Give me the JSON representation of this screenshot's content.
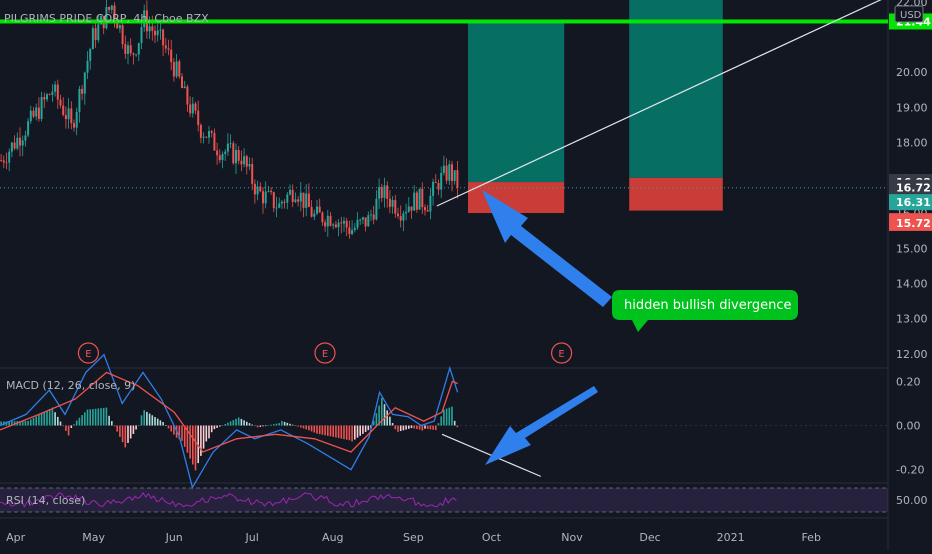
{
  "chart_data": [
    {
      "type": "candlestick",
      "title": "PILGRIMS PRIDE CORP, 4h, Cboe BZX",
      "currency": "USD",
      "ylim": [
        11.6,
        22.05
      ],
      "y_ticks": [
        12,
        13,
        14,
        15,
        16,
        17,
        18,
        19,
        20,
        22
      ],
      "y_tick_labels": [
        "12.00",
        "13.00",
        "14.00",
        "15.00",
        "16.00",
        "17.00",
        "18.00",
        "19.00",
        "20.00",
        "22.00"
      ],
      "x_ticks": [
        "Apr",
        "May",
        "Jun",
        "Jul",
        "Aug",
        "Sep",
        "Oct",
        "Nov",
        "Dec",
        "2021",
        "Feb"
      ],
      "price_labels": [
        {
          "value": 21.44,
          "text": "21.44",
          "color": "#00e600"
        },
        {
          "value": 16.88,
          "text": "16.88",
          "color": "#363a45"
        },
        {
          "value": 16.72,
          "text": "16.72",
          "color": "#363a45"
        },
        {
          "value": 16.31,
          "text": "16.31",
          "color": "#26a69a"
        },
        {
          "value": 15.77,
          "text": "15.77",
          "color": "#ef5350"
        },
        {
          "value": 15.72,
          "text": "15.72",
          "color": "#ef5350"
        }
      ],
      "resistance_line": 21.44,
      "current_price": 16.72,
      "trendline": {
        "from": {
          "date": "2020-09-10",
          "value": 16.2
        },
        "to": {
          "date": "2021-03-01",
          "value": 22.1
        }
      },
      "positions": [
        {
          "start": "2020-09-22",
          "end": "2020-10-29",
          "entry": 16.88,
          "target": 21.44,
          "stop": 16.0
        },
        {
          "start": "2020-11-23",
          "end": "2020-12-29",
          "entry": 17.0,
          "target": 22.05,
          "stop": 16.07
        }
      ],
      "earnings_markers": [
        {
          "date": "2020-04-29",
          "label": "E"
        },
        {
          "date": "2020-07-29",
          "label": "E"
        },
        {
          "date": "2020-10-28",
          "label": "E"
        }
      ],
      "price_path": [
        {
          "date": "2020-03-26",
          "value": 17.5
        },
        {
          "date": "2020-04-06",
          "value": 18.6
        },
        {
          "date": "2020-04-14",
          "value": 19.5
        },
        {
          "date": "2020-04-22",
          "value": 18.4
        },
        {
          "date": "2020-04-30",
          "value": 21.0
        },
        {
          "date": "2020-05-07",
          "value": 21.9
        },
        {
          "date": "2020-05-14",
          "value": 20.4
        },
        {
          "date": "2020-05-20",
          "value": 21.5
        },
        {
          "date": "2020-05-27",
          "value": 20.8
        },
        {
          "date": "2020-06-01",
          "value": 20.0
        },
        {
          "date": "2020-06-04",
          "value": 19.3
        },
        {
          "date": "2020-06-10",
          "value": 18.4
        },
        {
          "date": "2020-06-18",
          "value": 17.8
        },
        {
          "date": "2020-06-26",
          "value": 17.6
        },
        {
          "date": "2020-07-02",
          "value": 16.6
        },
        {
          "date": "2020-07-10",
          "value": 16.2
        },
        {
          "date": "2020-07-17",
          "value": 16.7
        },
        {
          "date": "2020-07-24",
          "value": 15.9
        },
        {
          "date": "2020-07-31",
          "value": 15.9
        },
        {
          "date": "2020-08-07",
          "value": 15.5
        },
        {
          "date": "2020-08-14",
          "value": 15.8
        },
        {
          "date": "2020-08-19",
          "value": 16.6
        },
        {
          "date": "2020-08-26",
          "value": 16.1
        },
        {
          "date": "2020-09-01",
          "value": 16.4
        },
        {
          "date": "2020-09-06",
          "value": 16.3
        },
        {
          "date": "2020-09-10",
          "value": 16.9
        },
        {
          "date": "2020-09-14",
          "value": 17.2
        },
        {
          "date": "2020-09-17",
          "value": 16.8
        },
        {
          "date": "2020-09-18",
          "value": 16.72
        }
      ]
    },
    {
      "type": "histogram",
      "title": "MACD (12, 26, close, 9)",
      "ylim": [
        -0.26,
        0.26
      ],
      "y_ticks": [
        -0.2,
        0.0,
        0.2
      ],
      "y_tick_labels": [
        "-0.20",
        "0.00",
        "0.20"
      ],
      "macd_path": [
        {
          "date": "2020-03-26",
          "value": 0.0
        },
        {
          "date": "2020-04-05",
          "value": 0.05
        },
        {
          "date": "2020-04-14",
          "value": 0.16
        },
        {
          "date": "2020-04-20",
          "value": 0.05
        },
        {
          "date": "2020-04-28",
          "value": 0.24
        },
        {
          "date": "2020-05-05",
          "value": 0.32
        },
        {
          "date": "2020-05-12",
          "value": 0.1
        },
        {
          "date": "2020-05-20",
          "value": 0.24
        },
        {
          "date": "2020-05-27",
          "value": 0.12
        },
        {
          "date": "2020-06-03",
          "value": -0.05
        },
        {
          "date": "2020-06-08",
          "value": -0.28
        },
        {
          "date": "2020-06-16",
          "value": -0.12
        },
        {
          "date": "2020-06-25",
          "value": -0.02
        },
        {
          "date": "2020-07-02",
          "value": -0.06
        },
        {
          "date": "2020-07-12",
          "value": -0.02
        },
        {
          "date": "2020-07-22",
          "value": -0.08
        },
        {
          "date": "2020-08-01",
          "value": -0.15
        },
        {
          "date": "2020-08-08",
          "value": -0.2
        },
        {
          "date": "2020-08-15",
          "value": -0.05
        },
        {
          "date": "2020-08-19",
          "value": 0.15
        },
        {
          "date": "2020-08-24",
          "value": 0.05
        },
        {
          "date": "2020-08-30",
          "value": 0.04
        },
        {
          "date": "2020-09-04",
          "value": 0.0
        },
        {
          "date": "2020-09-09",
          "value": 0.02
        },
        {
          "date": "2020-09-13",
          "value": 0.18
        },
        {
          "date": "2020-09-15",
          "value": 0.26
        },
        {
          "date": "2020-09-18",
          "value": 0.15
        }
      ],
      "signal_path": [
        {
          "date": "2020-03-26",
          "value": -0.02
        },
        {
          "date": "2020-04-10",
          "value": 0.05
        },
        {
          "date": "2020-04-24",
          "value": 0.12
        },
        {
          "date": "2020-05-06",
          "value": 0.24
        },
        {
          "date": "2020-05-18",
          "value": 0.18
        },
        {
          "date": "2020-06-01",
          "value": 0.06
        },
        {
          "date": "2020-06-12",
          "value": -0.12
        },
        {
          "date": "2020-06-25",
          "value": -0.06
        },
        {
          "date": "2020-07-10",
          "value": -0.04
        },
        {
          "date": "2020-07-25",
          "value": -0.06
        },
        {
          "date": "2020-08-08",
          "value": -0.12
        },
        {
          "date": "2020-08-18",
          "value": 0.0
        },
        {
          "date": "2020-08-25",
          "value": 0.08
        },
        {
          "date": "2020-09-05",
          "value": 0.02
        },
        {
          "date": "2020-09-12",
          "value": 0.06
        },
        {
          "date": "2020-09-16",
          "value": 0.2
        },
        {
          "date": "2020-09-18",
          "value": 0.19
        }
      ],
      "divergence_line": {
        "from": {
          "date": "2020-09-12",
          "value": -0.04
        },
        "to": {
          "date": "2020-10-20",
          "value": -0.23
        }
      }
    },
    {
      "type": "line",
      "title": "RSI (14, close)",
      "y_ticks": [
        50
      ],
      "y_tick_labels": [
        "50.00"
      ]
    }
  ],
  "annotations": {
    "callout": "hidden bullish divergence",
    "callout_color": "#00c21c",
    "arrow_color": "#2f80ed"
  },
  "colors": {
    "background": "#131722",
    "up": "#26a69a",
    "down": "#ef5350",
    "macd": "#2f7ee6",
    "signal": "#ef5350",
    "rsi": "#9c27b0",
    "resistance": "#00e600",
    "profit_zone": "#076e64",
    "loss_zone": "#c93c37"
  }
}
